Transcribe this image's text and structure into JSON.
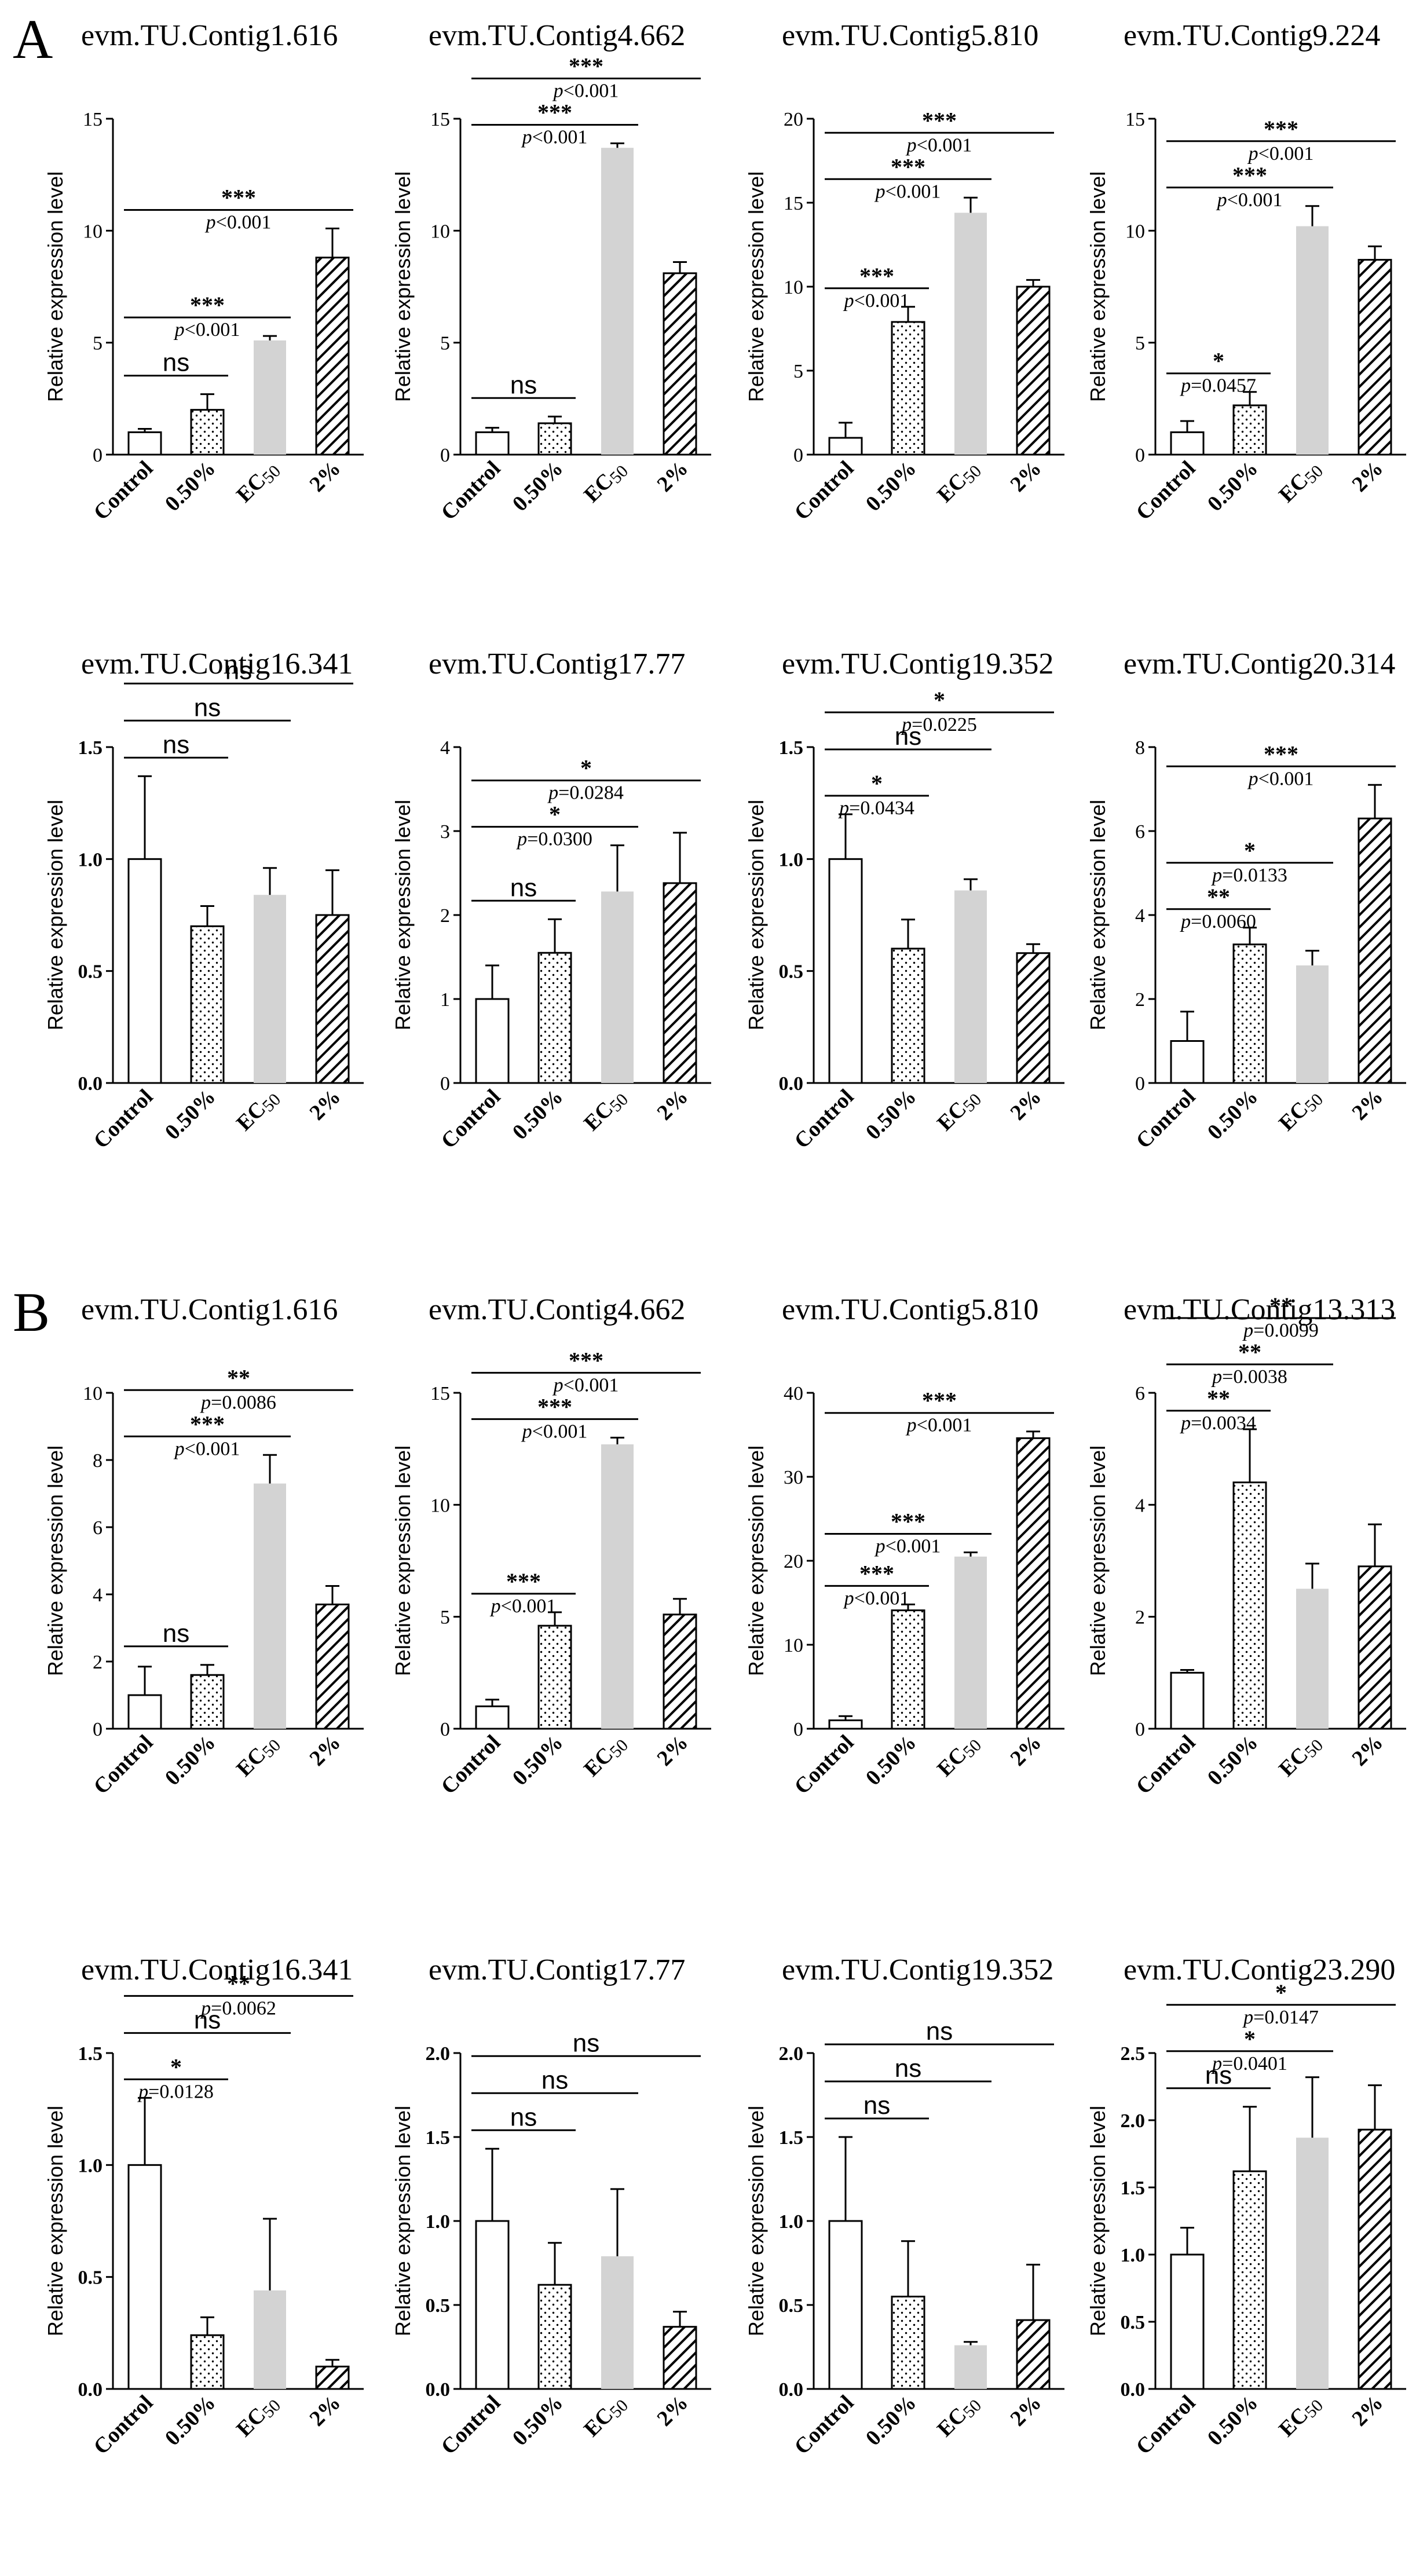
{
  "figure": {
    "panel_labels": [
      "A",
      "B"
    ],
    "categories": [
      "Control",
      "0.50%",
      "EC50",
      "2%"
    ],
    "ylabel": "Relative expression level",
    "fills": [
      "white",
      "dots",
      "gray",
      "hatch"
    ]
  },
  "chart_data": [
    {
      "type": "bar",
      "panel": "A",
      "title": "evm.TU.Contig1.616",
      "categories": [
        "Control",
        "0.50%",
        "EC50",
        "2%"
      ],
      "values": [
        1.0,
        2.0,
        5.1,
        8.8
      ],
      "errors": [
        0.15,
        0.7,
        0.2,
        1.3
      ],
      "ylim": [
        0,
        15
      ],
      "yticks": [
        "0",
        "5",
        "10",
        "15"
      ],
      "ylabel": "Relative expression level",
      "annotations": [
        {
          "from": 0,
          "to": 1,
          "label": "ns",
          "p": ""
        },
        {
          "from": 0,
          "to": 2,
          "label": "***",
          "p": "p<0.001"
        },
        {
          "from": 0,
          "to": 3,
          "label": "***",
          "p": "p<0.001"
        }
      ]
    },
    {
      "type": "bar",
      "panel": "A",
      "title": "evm.TU.Contig4.662",
      "categories": [
        "Control",
        "0.50%",
        "EC50",
        "2%"
      ],
      "values": [
        1.0,
        1.4,
        13.7,
        8.1
      ],
      "errors": [
        0.2,
        0.3,
        0.2,
        0.5
      ],
      "ylim": [
        0,
        15
      ],
      "yticks": [
        "0",
        "5",
        "10",
        "15"
      ],
      "ylabel": "Relative expression level",
      "annotations": [
        {
          "from": 0,
          "to": 1,
          "label": "ns",
          "p": ""
        },
        {
          "from": 0,
          "to": 2,
          "label": "***",
          "p": "p<0.001"
        },
        {
          "from": 0,
          "to": 3,
          "label": "***",
          "p": "p<0.001"
        }
      ]
    },
    {
      "type": "bar",
      "panel": "A",
      "title": "evm.TU.Contig5.810",
      "categories": [
        "Control",
        "0.50%",
        "EC50",
        "2%"
      ],
      "values": [
        1.0,
        7.9,
        14.4,
        10.0
      ],
      "errors": [
        0.9,
        0.9,
        0.9,
        0.4
      ],
      "ylim": [
        0,
        20
      ],
      "yticks": [
        "0",
        "5",
        "10",
        "15",
        "20"
      ],
      "ylabel": "Relative expression level",
      "annotations": [
        {
          "from": 0,
          "to": 1,
          "label": "***",
          "p": "p<0.001"
        },
        {
          "from": 0,
          "to": 2,
          "label": "***",
          "p": "p<0.001"
        },
        {
          "from": 0,
          "to": 3,
          "label": "***",
          "p": "p<0.001"
        }
      ]
    },
    {
      "type": "bar",
      "panel": "A",
      "title": "evm.TU.Contig9.224",
      "categories": [
        "Control",
        "0.50%",
        "EC50",
        "2%"
      ],
      "values": [
        1.0,
        2.2,
        10.2,
        8.7
      ],
      "errors": [
        0.5,
        0.6,
        0.9,
        0.6
      ],
      "ylim": [
        0,
        15
      ],
      "yticks": [
        "0",
        "5",
        "10",
        "15"
      ],
      "ylabel": "Relative expression level",
      "annotations": [
        {
          "from": 0,
          "to": 1,
          "label": "*",
          "p": "p=0.0457"
        },
        {
          "from": 0,
          "to": 2,
          "label": "***",
          "p": "p<0.001"
        },
        {
          "from": 0,
          "to": 3,
          "label": "***",
          "p": "p<0.001"
        }
      ]
    },
    {
      "type": "bar",
      "panel": "A",
      "title": "evm.TU.Contig16.341",
      "categories": [
        "Control",
        "0.50%",
        "EC50",
        "2%"
      ],
      "values": [
        1.0,
        0.7,
        0.84,
        0.75
      ],
      "errors": [
        0.37,
        0.09,
        0.12,
        0.2
      ],
      "ylim": [
        0,
        1.5
      ],
      "yticks": [
        "0.0",
        "0.5",
        "1.0",
        "1.5"
      ],
      "ylabel": "Relative expression level",
      "annotations": [
        {
          "from": 0,
          "to": 1,
          "label": "ns",
          "p": ""
        },
        {
          "from": 0,
          "to": 2,
          "label": "ns",
          "p": ""
        },
        {
          "from": 0,
          "to": 3,
          "label": "ns",
          "p": ""
        }
      ]
    },
    {
      "type": "bar",
      "panel": "A",
      "title": "evm.TU.Contig17.77",
      "categories": [
        "Control",
        "0.50%",
        "EC50",
        "2%"
      ],
      "values": [
        1.0,
        1.55,
        2.28,
        2.38
      ],
      "errors": [
        0.4,
        0.4,
        0.55,
        0.6
      ],
      "ylim": [
        0,
        4
      ],
      "yticks": [
        "0",
        "1",
        "2",
        "3",
        "4"
      ],
      "ylabel": "Relative expression level",
      "annotations": [
        {
          "from": 0,
          "to": 1,
          "label": "ns",
          "p": ""
        },
        {
          "from": 0,
          "to": 2,
          "label": "*",
          "p": "p=0.0300"
        },
        {
          "from": 0,
          "to": 3,
          "label": "*",
          "p": "p=0.0284"
        }
      ]
    },
    {
      "type": "bar",
      "panel": "A",
      "title": "evm.TU.Contig19.352",
      "categories": [
        "Control",
        "0.50%",
        "EC50",
        "2%"
      ],
      "values": [
        1.0,
        0.6,
        0.86,
        0.58
      ],
      "errors": [
        0.2,
        0.13,
        0.05,
        0.04
      ],
      "ylim": [
        0,
        1.5
      ],
      "yticks": [
        "0.0",
        "0.5",
        "1.0",
        "1.5"
      ],
      "ylabel": "Relative expression level",
      "annotations": [
        {
          "from": 0,
          "to": 1,
          "label": "*",
          "p": "p=0.0434"
        },
        {
          "from": 0,
          "to": 2,
          "label": "ns",
          "p": ""
        },
        {
          "from": 0,
          "to": 3,
          "label": "*",
          "p": "p=0.0225"
        }
      ]
    },
    {
      "type": "bar",
      "panel": "A",
      "title": "evm.TU.Contig20.314",
      "categories": [
        "Control",
        "0.50%",
        "EC50",
        "2%"
      ],
      "values": [
        1.0,
        3.3,
        2.8,
        6.3
      ],
      "errors": [
        0.7,
        0.4,
        0.35,
        0.8
      ],
      "ylim": [
        0,
        8
      ],
      "yticks": [
        "0",
        "2",
        "4",
        "6",
        "8"
      ],
      "ylabel": "Relative expression level",
      "annotations": [
        {
          "from": 0,
          "to": 1,
          "label": "**",
          "p": "p=0.0060"
        },
        {
          "from": 0,
          "to": 2,
          "label": "*",
          "p": "p=0.0133"
        },
        {
          "from": 0,
          "to": 3,
          "label": "***",
          "p": "p<0.001"
        }
      ]
    },
    {
      "type": "bar",
      "panel": "B",
      "title": "evm.TU.Contig1.616",
      "categories": [
        "Control",
        "0.50%",
        "EC50",
        "2%"
      ],
      "values": [
        1.0,
        1.6,
        7.3,
        3.7
      ],
      "errors": [
        0.85,
        0.3,
        0.85,
        0.55
      ],
      "ylim": [
        0,
        10
      ],
      "yticks": [
        "0",
        "2",
        "4",
        "6",
        "8",
        "10"
      ],
      "ylabel": "Relative expression level",
      "annotations": [
        {
          "from": 0,
          "to": 1,
          "label": "ns",
          "p": ""
        },
        {
          "from": 0,
          "to": 2,
          "label": "***",
          "p": "p<0.001"
        },
        {
          "from": 0,
          "to": 3,
          "label": "**",
          "p": "p=0.0086"
        }
      ]
    },
    {
      "type": "bar",
      "panel": "B",
      "title": "evm.TU.Contig4.662",
      "categories": [
        "Control",
        "0.50%",
        "EC50",
        "2%"
      ],
      "values": [
        1.0,
        4.6,
        12.7,
        5.1
      ],
      "errors": [
        0.3,
        0.6,
        0.3,
        0.7
      ],
      "ylim": [
        0,
        15
      ],
      "yticks": [
        "0",
        "5",
        "10",
        "15"
      ],
      "ylabel": "Relative expression level",
      "annotations": [
        {
          "from": 0,
          "to": 1,
          "label": "***",
          "p": "p<0.001"
        },
        {
          "from": 0,
          "to": 2,
          "label": "***",
          "p": "p<0.001"
        },
        {
          "from": 0,
          "to": 3,
          "label": "***",
          "p": "p<0.001"
        }
      ]
    },
    {
      "type": "bar",
      "panel": "B",
      "title": "evm.TU.Contig5.810",
      "categories": [
        "Control",
        "0.50%",
        "EC50",
        "2%"
      ],
      "values": [
        1.0,
        14.1,
        20.5,
        34.6
      ],
      "errors": [
        0.5,
        0.7,
        0.5,
        0.8
      ],
      "ylim": [
        0,
        40
      ],
      "yticks": [
        "0",
        "10",
        "20",
        "30",
        "40"
      ],
      "ylabel": "Relative expression level",
      "annotations": [
        {
          "from": 0,
          "to": 1,
          "label": "***",
          "p": "p<0.001"
        },
        {
          "from": 0,
          "to": 2,
          "label": "***",
          "p": "p<0.001"
        },
        {
          "from": 0,
          "to": 3,
          "label": "***",
          "p": "p<0.001"
        }
      ]
    },
    {
      "type": "bar",
      "panel": "B",
      "title": "evm.TU.Contig13.313",
      "categories": [
        "Control",
        "0.50%",
        "EC50",
        "2%"
      ],
      "values": [
        1.0,
        4.4,
        2.5,
        2.9
      ],
      "errors": [
        0.05,
        0.95,
        0.45,
        0.75
      ],
      "ylim": [
        0,
        6
      ],
      "yticks": [
        "0",
        "2",
        "4",
        "6"
      ],
      "ylabel": "Relative expression level",
      "annotations": [
        {
          "from": 0,
          "to": 1,
          "label": "**",
          "p": "p=0.0034"
        },
        {
          "from": 0,
          "to": 2,
          "label": "**",
          "p": "p=0.0038"
        },
        {
          "from": 0,
          "to": 3,
          "label": "**",
          "p": "p=0.0099"
        }
      ]
    },
    {
      "type": "bar",
      "panel": "B",
      "title": "evm.TU.Contig16.341",
      "categories": [
        "Control",
        "0.50%",
        "EC50",
        "2%"
      ],
      "values": [
        1.0,
        0.24,
        0.44,
        0.1
      ],
      "errors": [
        0.3,
        0.08,
        0.32,
        0.03
      ],
      "ylim": [
        0,
        1.5
      ],
      "yticks": [
        "0.0",
        "0.5",
        "1.0",
        "1.5"
      ],
      "ylabel": "Relative expression level",
      "annotations": [
        {
          "from": 0,
          "to": 1,
          "label": "*",
          "p": "p=0.0128"
        },
        {
          "from": 0,
          "to": 2,
          "label": "ns",
          "p": ""
        },
        {
          "from": 0,
          "to": 3,
          "label": "**",
          "p": "p=0.0062"
        }
      ]
    },
    {
      "type": "bar",
      "panel": "B",
      "title": "evm.TU.Contig17.77",
      "categories": [
        "Control",
        "0.50%",
        "EC50",
        "2%"
      ],
      "values": [
        1.0,
        0.62,
        0.79,
        0.37
      ],
      "errors": [
        0.43,
        0.25,
        0.4,
        0.09
      ],
      "ylim": [
        0,
        2
      ],
      "yticks": [
        "0.0",
        "0.5",
        "1.0",
        "1.5",
        "2.0"
      ],
      "ylabel": "Relative expression level",
      "annotations": [
        {
          "from": 0,
          "to": 1,
          "label": "ns",
          "p": ""
        },
        {
          "from": 0,
          "to": 2,
          "label": "ns",
          "p": ""
        },
        {
          "from": 0,
          "to": 3,
          "label": "ns",
          "p": ""
        }
      ]
    },
    {
      "type": "bar",
      "panel": "B",
      "title": "evm.TU.Contig19.352",
      "categories": [
        "Control",
        "0.50%",
        "EC50",
        "2%"
      ],
      "values": [
        1.0,
        0.55,
        0.26,
        0.41
      ],
      "errors": [
        0.5,
        0.33,
        0.02,
        0.33
      ],
      "ylim": [
        0,
        2
      ],
      "yticks": [
        "0.0",
        "0.5",
        "1.0",
        "1.5",
        "2.0"
      ],
      "ylabel": "Relative expression level",
      "annotations": [
        {
          "from": 0,
          "to": 1,
          "label": "ns",
          "p": ""
        },
        {
          "from": 0,
          "to": 2,
          "label": "ns",
          "p": ""
        },
        {
          "from": 0,
          "to": 3,
          "label": "ns",
          "p": ""
        }
      ]
    },
    {
      "type": "bar",
      "panel": "B",
      "title": "evm.TU.Contig23.290",
      "categories": [
        "Control",
        "0.50%",
        "EC50",
        "2%"
      ],
      "values": [
        1.0,
        1.62,
        1.87,
        1.93
      ],
      "errors": [
        0.2,
        0.48,
        0.45,
        0.33
      ],
      "ylim": [
        0,
        2.5
      ],
      "yticks": [
        "0.0",
        "0.5",
        "1.0",
        "1.5",
        "2.0",
        "2.5"
      ],
      "ylabel": "Relative expression level",
      "annotations": [
        {
          "from": 0,
          "to": 1,
          "label": "ns",
          "p": ""
        },
        {
          "from": 0,
          "to": 2,
          "label": "*",
          "p": "p=0.0401"
        },
        {
          "from": 0,
          "to": 3,
          "label": "*",
          "p": "p=0.0147"
        }
      ]
    }
  ]
}
